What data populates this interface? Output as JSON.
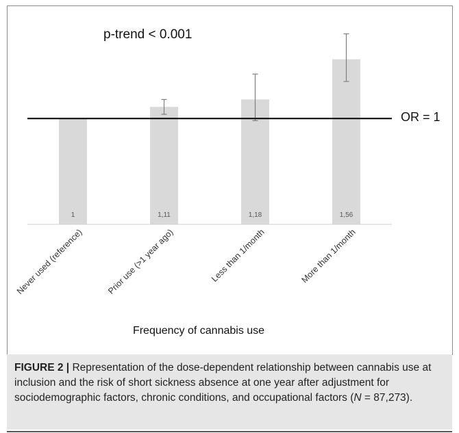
{
  "chart_data": {
    "type": "bar",
    "categories": [
      "Never used (reference)",
      "Prior use (>1 year ago)",
      "Less than 1/month",
      "More than 1/month"
    ],
    "values": [
      1,
      1.11,
      1.18,
      1.56
    ],
    "value_labels": [
      "1",
      "1,11",
      "1,18",
      "1,56"
    ],
    "error_low": [
      1,
      1.04,
      0.98,
      1.35
    ],
    "error_high": [
      1,
      1.18,
      1.42,
      1.8
    ],
    "reference_line": {
      "value": 1,
      "label": "OR = 1"
    },
    "annotation": "p-trend < 0.001",
    "xlabel": "Frequency of cannabis use",
    "ylabel": "",
    "ylim": [
      0,
      1.9
    ],
    "grid": false,
    "bar_color": "#d9d9d9",
    "errorbar_color": "#7f7f7f",
    "line_color": "#000000"
  },
  "caption": {
    "label": "FIGURE 2 |",
    "text_before_n": " Representation of the dose-dependent relationship between cannabis use at inclusion and the risk of short sickness absence at one year after adjustment for sociodemographic factors, chronic conditions, and occupational factors (",
    "n_symbol": "N",
    "text_after_n": " = 87,273)."
  }
}
